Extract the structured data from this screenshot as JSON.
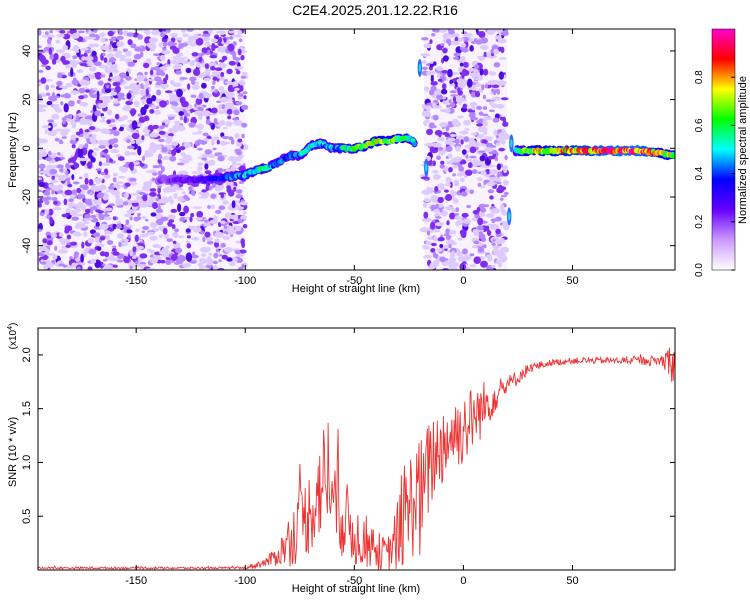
{
  "figure": {
    "title": "C2E4.2025.201.12.22.R16"
  },
  "chart_data": [
    {
      "type": "heatmap",
      "xlabel": "Height of straight line (km)",
      "ylabel": "Frequency (Hz)",
      "xlim": [
        -195,
        97
      ],
      "ylim": [
        -50,
        49
      ],
      "x_ticks": [
        -150,
        -100,
        -50,
        0,
        50
      ],
      "x_tick_labels": [
        "-150",
        "-100",
        "-50",
        "0",
        "50"
      ],
      "y_ticks": [
        -40,
        -20,
        0,
        20,
        40
      ],
      "y_tick_labels": [
        "-40",
        "-20",
        "0",
        "20",
        "40"
      ],
      "colorbar": {
        "label": "Normalized spectral amplitude",
        "range": [
          0,
          1
        ],
        "ticks": [
          0.0,
          0.2,
          0.4,
          0.6,
          0.8
        ],
        "tick_labels": [
          "0.0",
          "0.2",
          "0.4",
          "0.6",
          "0.8"
        ],
        "colormap": [
          "#ffffff",
          "#cc99ff",
          "#6600ff",
          "#0000ff",
          "#00ffff",
          "#00ff00",
          "#ffff00",
          "#ff0000",
          "#ff00cc"
        ]
      },
      "noise_regions": [
        {
          "x": [
            -195,
            -100
          ],
          "y": [
            -50,
            49
          ],
          "level": 0.2
        },
        {
          "x": [
            -18,
            20
          ],
          "y": [
            -50,
            49
          ],
          "level": 0.22
        }
      ],
      "ridge": {
        "x": [
          -140,
          -120,
          -110,
          -100,
          -95,
          -90,
          -85,
          -80,
          -75,
          -70,
          -65,
          -60,
          -55,
          -50,
          -45,
          -40,
          -35,
          -30,
          -25,
          -22
        ],
        "y": [
          -13,
          -13,
          -12,
          -11,
          -9,
          -8,
          -6,
          -3,
          -3,
          1,
          2,
          0,
          0,
          0,
          1,
          3,
          3,
          4,
          4,
          2
        ],
        "amplitude": [
          0.2,
          0.3,
          0.4,
          0.5,
          0.6,
          0.55,
          0.45,
          0.4,
          0.5,
          0.55,
          0.5,
          0.45,
          0.55,
          0.6,
          0.7,
          0.75,
          0.7,
          0.65,
          0.6,
          0.5
        ]
      },
      "tone": {
        "x": [
          24,
          30,
          40,
          50,
          60,
          70,
          80,
          90,
          97
        ],
        "y": [
          -1,
          -1,
          -1,
          -1,
          -1,
          -1,
          -1,
          -2,
          -3
        ],
        "amplitude": [
          0.5,
          0.75,
          0.8,
          0.85,
          0.9,
          0.95,
          0.95,
          0.8,
          0.7
        ]
      }
    },
    {
      "type": "line",
      "xlabel": "Height of straight line (km)",
      "ylabel": "SNR (10 * v/v)",
      "y_multiplier_label": "(x10",
      "y_multiplier_exponent": "4",
      "xlim": [
        -195,
        97
      ],
      "ylim": [
        0,
        2.25
      ],
      "x_ticks": [
        -150,
        -100,
        -50,
        0,
        50
      ],
      "x_tick_labels": [
        "-150",
        "-100",
        "-50",
        "0",
        "50"
      ],
      "y_ticks": [
        0.5,
        1.0,
        1.5,
        2.0
      ],
      "y_tick_labels": [
        "0.5",
        "1.0",
        "1.5",
        "2.0"
      ],
      "color": "#ee3333",
      "envelope": {
        "x": [
          -195,
          -100,
          -90,
          -85,
          -80,
          -75,
          -70,
          -65,
          -62,
          -60,
          -55,
          -50,
          -45,
          -40,
          -35,
          -30,
          -25,
          -22,
          -20,
          -18,
          -15,
          -10,
          -5,
          0,
          5,
          10,
          15,
          20,
          25,
          30,
          40,
          50,
          60,
          70,
          80,
          90,
          95,
          97
        ],
        "y": [
          0.02,
          0.02,
          0.08,
          0.15,
          0.3,
          0.45,
          0.6,
          0.85,
          1.0,
          0.7,
          0.55,
          0.35,
          0.3,
          0.2,
          0.15,
          0.35,
          0.6,
          0.8,
          0.7,
          0.8,
          1.05,
          1.2,
          1.3,
          1.35,
          1.45,
          1.55,
          1.65,
          1.72,
          1.8,
          1.88,
          1.93,
          1.95,
          1.95,
          1.95,
          1.95,
          1.95,
          1.97,
          1.9
        ],
        "spread": [
          0.01,
          0.01,
          0.05,
          0.1,
          0.25,
          0.35,
          0.4,
          0.5,
          0.6,
          0.5,
          0.4,
          0.3,
          0.25,
          0.2,
          0.15,
          0.35,
          0.5,
          0.6,
          0.6,
          0.5,
          0.45,
          0.4,
          0.35,
          0.35,
          0.3,
          0.25,
          0.15,
          0.1,
          0.07,
          0.05,
          0.03,
          0.03,
          0.03,
          0.03,
          0.04,
          0.05,
          0.15,
          0.3
        ]
      }
    }
  ]
}
